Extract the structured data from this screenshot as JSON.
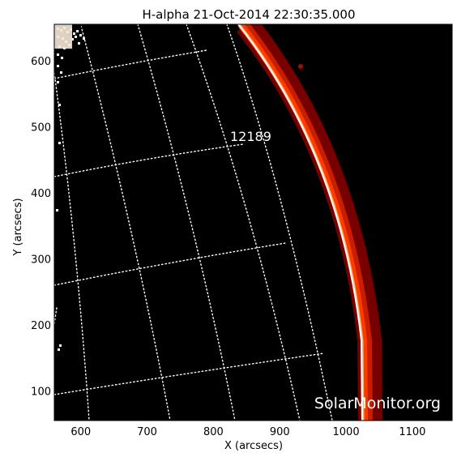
{
  "chart_data": {
    "type": "image",
    "title": "H-alpha 21-Oct-2014 22:30:35.000",
    "xlabel": "X (arcsecs)",
    "ylabel": "Y (arcsecs)",
    "xlim": [
      560,
      1160
    ],
    "ylim": [
      55,
      655
    ],
    "x_ticks": [
      600,
      700,
      800,
      900,
      1000,
      1100
    ],
    "y_ticks": [
      100,
      200,
      300,
      400,
      500,
      600
    ],
    "x_tick_labels": [
      "600",
      "700",
      "800",
      "900",
      "1000",
      "1100"
    ],
    "y_tick_labels": [
      "100",
      "200",
      "300",
      "400",
      "500",
      "600"
    ],
    "limb_color": "#ff3c00",
    "limb_edge_color": "#ffffff",
    "limb_glow_color": "#8b0000",
    "background": "#000000",
    "grid_color": "#ffffff",
    "grid_style": "dotted",
    "active_regions": [
      {
        "number": "12189",
        "x": 840,
        "y": 483
      }
    ],
    "watermark": "SolarMonitor.org"
  }
}
